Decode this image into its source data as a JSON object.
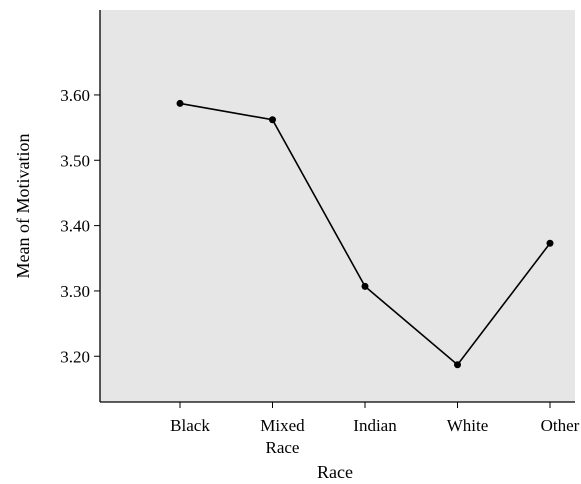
{
  "chart_data": {
    "type": "line",
    "xlabel": "Race",
    "ylabel": "Mean of Motivation",
    "categories": [
      "Black",
      "Mixed Race",
      "Indian",
      "White",
      "Other"
    ],
    "values": [
      3.587,
      3.562,
      3.307,
      3.187,
      3.373
    ],
    "ylim": [
      3.13,
      3.73
    ],
    "yticks": [
      3.2,
      3.3,
      3.4,
      3.5,
      3.6
    ],
    "ytick_labels": [
      "3.20",
      "3.30",
      "3.40",
      "3.50",
      "3.60"
    ],
    "grid": false,
    "plot_background": "#e6e6e6",
    "line_color": "#000000"
  }
}
